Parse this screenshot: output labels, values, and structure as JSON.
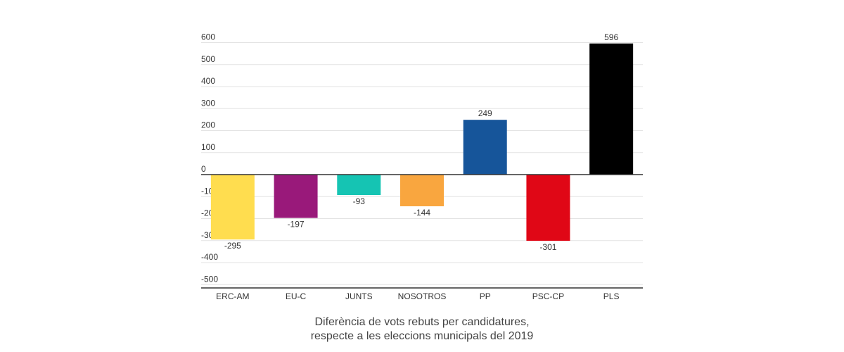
{
  "chart_data": {
    "type": "bar",
    "categories": [
      "ERC-AM",
      "EU-C",
      "JUNTS",
      "NOSOTROS",
      "PP",
      "PSC-CP",
      "PLS"
    ],
    "values": [
      -295,
      -197,
      -93,
      -144,
      249,
      -301,
      596
    ],
    "colors": [
      "#FFDD4F",
      "#99197A",
      "#15C4B3",
      "#F9A63F",
      "#16559A",
      "#E00716",
      "#000000"
    ],
    "value_labels": [
      "-295",
      "-197",
      "-93",
      "-144",
      "249",
      "-301",
      "596"
    ],
    "yticks": [
      600,
      500,
      400,
      300,
      200,
      100,
      0,
      -100,
      -200,
      -300,
      -400,
      -500
    ],
    "ylim": [
      -520,
      600
    ],
    "title": "",
    "xlabel": "",
    "ylabel": "",
    "grid": true,
    "legend": "none"
  },
  "caption": {
    "line1": "Diferència de vots rebuts per candidatures,",
    "line2": "respecte a les eleccions municipals del 2019"
  }
}
